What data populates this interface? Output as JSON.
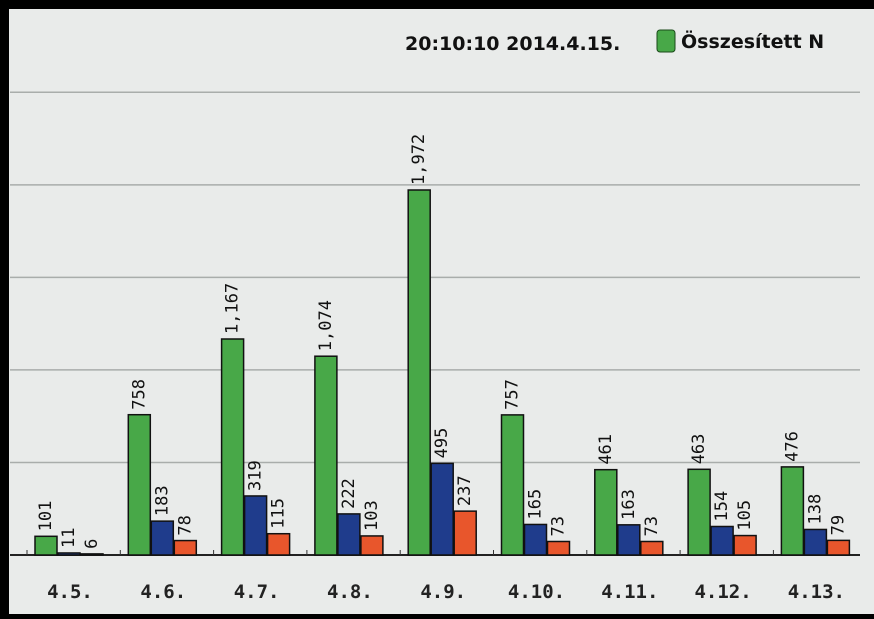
{
  "chart_data": {
    "type": "bar",
    "header": "20:10:10 2014.4.15.",
    "categories": [
      "4.5.",
      "4.6.",
      "4.7.",
      "4.8.",
      "4.9.",
      "4.10.",
      "4.11.",
      "4.12.",
      "4.13."
    ],
    "series": [
      {
        "name": "Összesített N",
        "color": "#48a848",
        "values": [
          101,
          758,
          1167,
          1074,
          1972,
          757,
          461,
          463,
          476
        ],
        "value_labels": [
          "101",
          "758",
          "1,167",
          "1,074",
          "1,972",
          "757",
          "461",
          "463",
          "476"
        ]
      },
      {
        "color": "#1f3c8c",
        "values": [
          11,
          183,
          319,
          222,
          495,
          165,
          163,
          154,
          138
        ]
      },
      {
        "color": "#e8562c",
        "values": [
          6,
          78,
          115,
          103,
          237,
          73,
          73,
          105,
          79
        ]
      }
    ],
    "ylim": [
      0,
      2750
    ],
    "ygrid": [
      500,
      1000,
      1500,
      2000,
      2500
    ],
    "grid": true
  }
}
